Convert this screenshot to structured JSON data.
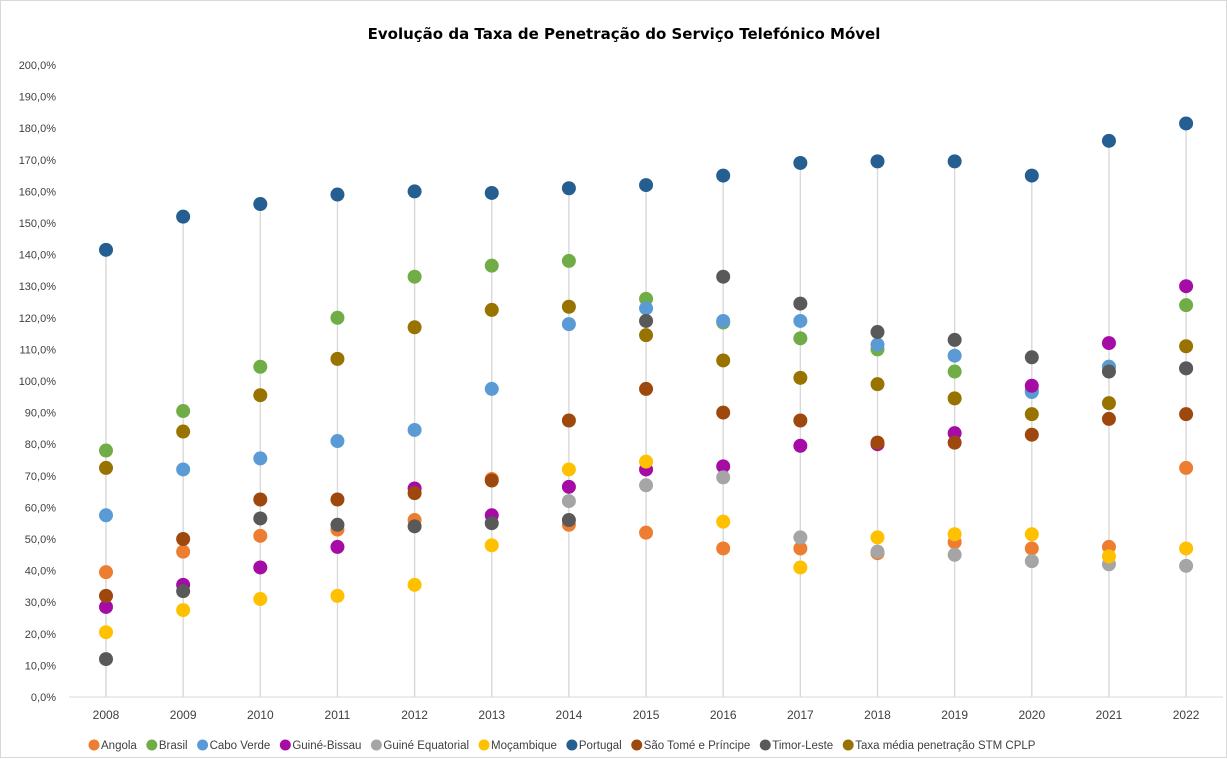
{
  "chart_data": {
    "type": "scatter",
    "title": "Evolução da Taxa de Penetração do Serviço Telefónico Móvel",
    "xlabel": "",
    "ylabel": "",
    "ylim": [
      0,
      200
    ],
    "y_ticks": [
      "0,0%",
      "10,0%",
      "20,0%",
      "30,0%",
      "40,0%",
      "50,0%",
      "60,0%",
      "70,0%",
      "80,0%",
      "90,0%",
      "100,0%",
      "110,0%",
      "120,0%",
      "130,0%",
      "140,0%",
      "150,0%",
      "160,0%",
      "170,0%",
      "180,0%",
      "190,0%",
      "200,0%"
    ],
    "categories": [
      "2008",
      "2009",
      "2010",
      "2011",
      "2012",
      "2013",
      "2014",
      "2015",
      "2016",
      "2017",
      "2018",
      "2019",
      "2020",
      "2021",
      "2022"
    ],
    "grid": false,
    "drop_lines": true,
    "legend_position": "bottom",
    "series": [
      {
        "name": "Angola",
        "color": "#ED7D31",
        "values": [
          39.5,
          46,
          51,
          53,
          56,
          69,
          54.5,
          52,
          47,
          47,
          45.5,
          49,
          47,
          47.5,
          72.5
        ]
      },
      {
        "name": "Brasil",
        "color": "#70AD47",
        "values": [
          78,
          90.5,
          104.5,
          120,
          133,
          136.5,
          138,
          126,
          118.5,
          113.5,
          110,
          103,
          97,
          104.5,
          124
        ]
      },
      {
        "name": "Cabo Verde",
        "color": "#5B9BD5",
        "values": [
          57.5,
          72,
          75.5,
          81,
          84.5,
          97.5,
          118,
          123,
          119,
          119,
          111.5,
          108,
          96.5,
          104.5,
          104
        ]
      },
      {
        "name": "Guiné-Bissau",
        "color": "#A50CA5",
        "values": [
          28.5,
          35.5,
          41,
          47.5,
          66,
          57.5,
          66.5,
          72,
          73,
          79.5,
          80,
          83.5,
          98.5,
          112,
          130
        ]
      },
      {
        "name": "Guiné Equatorial",
        "color": "#A5A5A5",
        "values": [
          null,
          null,
          null,
          null,
          null,
          null,
          62,
          67,
          69.5,
          50.5,
          46,
          45,
          43,
          42,
          41.5
        ]
      },
      {
        "name": "Moçambique",
        "color": "#FFC000",
        "values": [
          20.5,
          27.5,
          31,
          32,
          35.5,
          48,
          72,
          74.5,
          55.5,
          41,
          50.5,
          51.5,
          51.5,
          44.5,
          47
        ]
      },
      {
        "name": "Portugal",
        "color": "#255E91",
        "values": [
          141.5,
          152,
          156,
          159,
          160,
          159.5,
          161,
          162,
          165,
          169,
          169.5,
          169.5,
          165,
          176,
          181.5
        ]
      },
      {
        "name": "São Tomé e Príncipe",
        "color": "#9E480E",
        "values": [
          32,
          50,
          62.5,
          62.5,
          64.5,
          68.5,
          87.5,
          97.5,
          90,
          87.5,
          80.5,
          80.5,
          83,
          88,
          89.5
        ]
      },
      {
        "name": "Timor-Leste",
        "color": "#595959",
        "values": [
          12,
          33.5,
          56.5,
          54.5,
          54,
          55,
          56,
          119,
          133,
          124.5,
          115.5,
          113,
          107.5,
          103,
          104
        ]
      },
      {
        "name": "Taxa média penetração STM CPLP",
        "color": "#997300",
        "values": [
          72.5,
          84,
          95.5,
          107,
          117,
          122.5,
          123.5,
          114.5,
          106.5,
          101,
          99,
          94.5,
          89.5,
          93,
          111
        ]
      }
    ]
  }
}
